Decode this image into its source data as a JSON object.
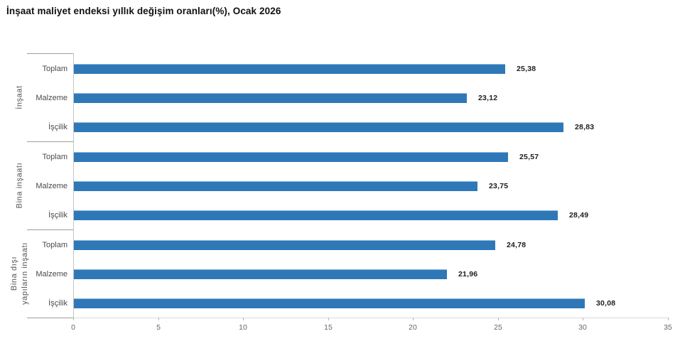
{
  "title": "İnşaat maliyet endeksi yıllık değişim oranları(%), Ocak 2026",
  "chart_data": {
    "type": "bar",
    "orientation": "horizontal",
    "title": "İnşaat maliyet endeksi yıllık değişim oranları(%), Ocak 2026",
    "xlabel": "",
    "ylabel": "",
    "xlim": [
      0,
      35
    ],
    "xticks": [
      "0",
      "5",
      "10",
      "15",
      "20",
      "25",
      "30",
      "35"
    ],
    "grid": false,
    "legend": false,
    "bar_color": "#2E78B8",
    "value_format": "comma-decimal",
    "groups": [
      {
        "name": "İnşaat",
        "name_lines": [
          "İnşaat"
        ],
        "categories": [
          "Toplam",
          "Malzeme",
          "İşçilik"
        ],
        "values": [
          25.38,
          23.12,
          28.83
        ],
        "value_labels": [
          "25,38",
          "23,12",
          "28,83"
        ]
      },
      {
        "name": "Bina inşaatı",
        "name_lines": [
          "Bina inşaatı"
        ],
        "categories": [
          "Toplam",
          "Malzeme",
          "İşçilik"
        ],
        "values": [
          25.57,
          23.75,
          28.49
        ],
        "value_labels": [
          "25,57",
          "23,75",
          "28,49"
        ]
      },
      {
        "name": "Bina dışı yapıların inşaatı",
        "name_lines": [
          "Bina dışı",
          "yapıların inşaatı"
        ],
        "categories": [
          "Toplam",
          "Malzeme",
          "İşçilik"
        ],
        "values": [
          24.78,
          21.96,
          30.08
        ],
        "value_labels": [
          "24,78",
          "21,96",
          "30,08"
        ]
      }
    ]
  }
}
